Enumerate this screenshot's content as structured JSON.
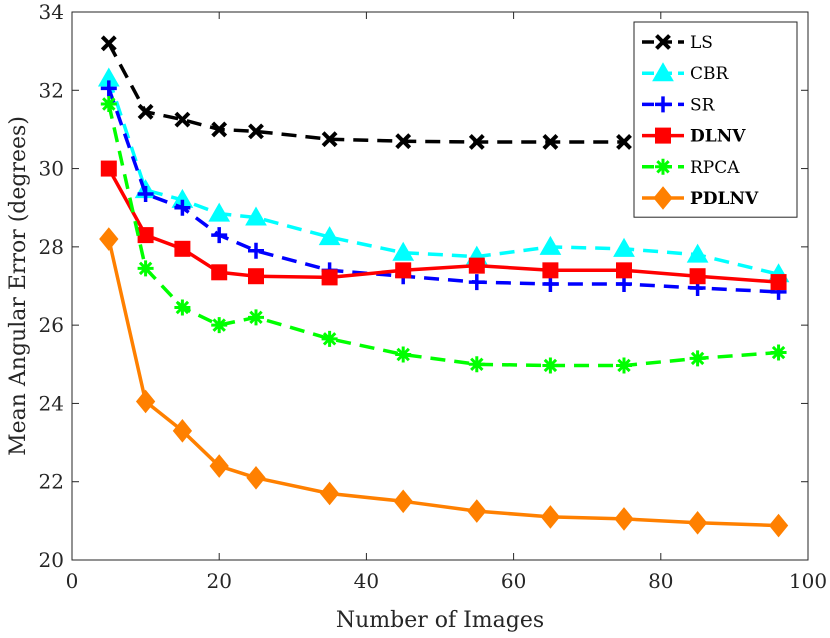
{
  "chart_data": {
    "type": "line",
    "xlabel": "Number of Images",
    "ylabel": "Mean Angular Error (degrees)",
    "xlim": [
      0,
      100
    ],
    "ylim": [
      20,
      34
    ],
    "xticks": [
      0,
      20,
      40,
      60,
      80,
      100
    ],
    "yticks": [
      20,
      22,
      24,
      26,
      28,
      30,
      32,
      34
    ],
    "grid": false,
    "legend_position": "top-right",
    "series": [
      {
        "name": "LS",
        "color": "#000000",
        "dash": "dashed",
        "marker": "x",
        "bold": false,
        "x": [
          5,
          10,
          15,
          20,
          25,
          35,
          45,
          55,
          65,
          75
        ],
        "y": [
          33.2,
          31.45,
          31.25,
          31.0,
          30.95,
          30.75,
          30.7,
          30.68,
          30.68,
          30.68
        ]
      },
      {
        "name": "CBR",
        "color": "#00ffff",
        "dash": "dashed",
        "marker": "triangle",
        "bold": false,
        "x": [
          5,
          10,
          15,
          20,
          25,
          35,
          45,
          55,
          65,
          75,
          85,
          96
        ],
        "y": [
          32.3,
          29.45,
          29.2,
          28.85,
          28.75,
          28.25,
          27.85,
          27.75,
          28.0,
          27.95,
          27.8,
          27.3
        ]
      },
      {
        "name": "SR",
        "color": "#0000ff",
        "dash": "dashed",
        "marker": "plus",
        "bold": false,
        "x": [
          5,
          10,
          15,
          20,
          25,
          35,
          45,
          55,
          65,
          75,
          85,
          96
        ],
        "y": [
          32.05,
          29.35,
          29.0,
          28.3,
          27.9,
          27.4,
          27.25,
          27.1,
          27.05,
          27.05,
          26.95,
          26.85
        ]
      },
      {
        "name": "DLNV",
        "color": "#ff0000",
        "dash": "solid",
        "marker": "square",
        "bold": true,
        "x": [
          5,
          10,
          15,
          20,
          25,
          35,
          45,
          55,
          65,
          75,
          85,
          96
        ],
        "y": [
          30.0,
          28.3,
          27.95,
          27.35,
          27.25,
          27.22,
          27.4,
          27.52,
          27.4,
          27.4,
          27.25,
          27.1
        ]
      },
      {
        "name": "RPCA",
        "color": "#00ff00",
        "dash": "dashed",
        "marker": "asterisk",
        "bold": false,
        "x": [
          5,
          10,
          15,
          20,
          25,
          35,
          45,
          55,
          65,
          75,
          85,
          96
        ],
        "y": [
          31.65,
          27.45,
          26.45,
          26.0,
          26.2,
          25.65,
          25.25,
          25.0,
          24.97,
          24.97,
          25.15,
          25.3
        ]
      },
      {
        "name": "PDLNV",
        "color": "#ff8000",
        "dash": "solid",
        "marker": "diamond",
        "bold": true,
        "x": [
          5,
          10,
          15,
          20,
          25,
          35,
          45,
          55,
          65,
          75,
          85,
          96
        ],
        "y": [
          28.2,
          24.05,
          23.3,
          22.4,
          22.1,
          21.7,
          21.5,
          21.25,
          21.1,
          21.05,
          20.95,
          20.88
        ]
      }
    ]
  }
}
